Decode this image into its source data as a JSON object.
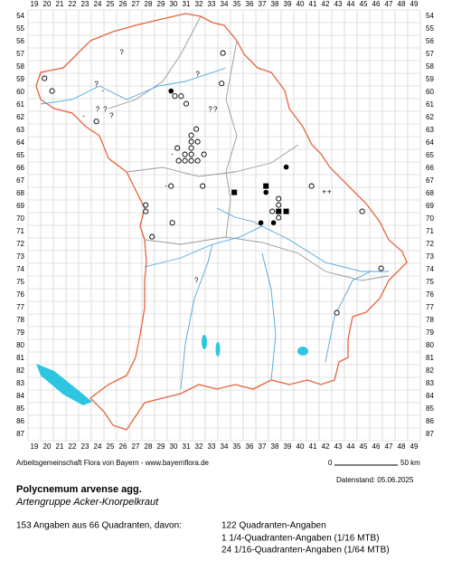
{
  "map": {
    "columns": [
      19,
      20,
      21,
      22,
      23,
      24,
      25,
      26,
      27,
      28,
      29,
      30,
      31,
      32,
      33,
      34,
      35,
      36,
      37,
      38,
      39,
      40,
      41,
      42,
      43,
      44,
      45,
      46,
      47,
      48,
      49
    ],
    "rows": [
      54,
      55,
      56,
      57,
      58,
      59,
      60,
      61,
      62,
      63,
      64,
      65,
      66,
      67,
      68,
      69,
      70,
      71,
      72,
      73,
      74,
      75,
      76,
      77,
      78,
      79,
      80,
      81,
      82,
      83,
      84,
      85,
      86,
      87
    ],
    "symbols": {
      "question": "?",
      "plus": "+",
      "minus": "-"
    },
    "records": {
      "open": [
        [
          19.8,
          58.9
        ],
        [
          20.4,
          59.9
        ],
        [
          23.9,
          62.3
        ],
        [
          33.9,
          56.9
        ],
        [
          33.8,
          59.3
        ],
        [
          30.1,
          60.3
        ],
        [
          30.6,
          60.3
        ],
        [
          31.0,
          60.9
        ],
        [
          31.8,
          62.9
        ],
        [
          31.4,
          63.4
        ],
        [
          31.4,
          63.9
        ],
        [
          31.9,
          63.9
        ],
        [
          30.3,
          64.4
        ],
        [
          31.4,
          64.4
        ],
        [
          30.9,
          64.9
        ],
        [
          31.4,
          64.9
        ],
        [
          32.4,
          64.9
        ],
        [
          30.4,
          65.4
        ],
        [
          30.9,
          65.4
        ],
        [
          31.4,
          65.4
        ],
        [
          31.9,
          65.4
        ],
        [
          29.8,
          67.4
        ],
        [
          32.3,
          67.4
        ],
        [
          27.8,
          68.9
        ],
        [
          27.8,
          69.4
        ],
        [
          28.3,
          71.4
        ],
        [
          29.9,
          70.3
        ],
        [
          38.3,
          68.4
        ],
        [
          38.3,
          68.9
        ],
        [
          37.8,
          69.4
        ],
        [
          38.3,
          69.9
        ],
        [
          40.9,
          67.4
        ],
        [
          44.9,
          69.4
        ],
        [
          46.4,
          73.9
        ],
        [
          42.9,
          77.4
        ]
      ],
      "filled": [
        [
          29.8,
          59.9
        ],
        [
          38.9,
          65.9
        ],
        [
          37.3,
          67.9
        ],
        [
          36.9,
          70.3
        ],
        [
          37.9,
          70.3
        ]
      ],
      "square": [
        [
          34.8,
          67.9
        ],
        [
          37.3,
          67.4
        ],
        [
          38.3,
          69.4
        ],
        [
          38.9,
          69.4
        ]
      ],
      "question": [
        [
          25.9,
          56.9
        ],
        [
          23.9,
          59.4
        ],
        [
          24.0,
          61.4
        ],
        [
          24.6,
          61.4
        ],
        [
          25.1,
          61.9
        ],
        [
          32.9,
          61.4
        ],
        [
          33.3,
          61.4
        ],
        [
          31.8,
          74.9
        ],
        [
          31.9,
          58.6
        ]
      ],
      "minus": [
        [
          24.4,
          59.9
        ],
        [
          22.9,
          61.9
        ],
        [
          29.4,
          67.4
        ],
        [
          29.9,
          64.9
        ]
      ],
      "plus": [
        [
          41.9,
          67.9
        ],
        [
          42.3,
          67.9
        ]
      ]
    },
    "scale": {
      "start": "0",
      "end": "50 km"
    }
  },
  "footer": {
    "source": "Arbeitsgemeinschaft Flora von Bayern - www.bayernflora.de",
    "date": "Datenstand: 05.06.2025",
    "species": "Polycnemum arvense agg.",
    "common_name": "Artengruppe Acker-Knorpelkraut",
    "summary": "153 Angaben aus 66 Quadranten, davon:",
    "counts": [
      "122 Quadranten-Angaben",
      "1 1/4-Quadranten-Angaben (1/16 MTB)",
      "24 1/16-Quadranten-Angaben (1/64 MTB)"
    ]
  }
}
